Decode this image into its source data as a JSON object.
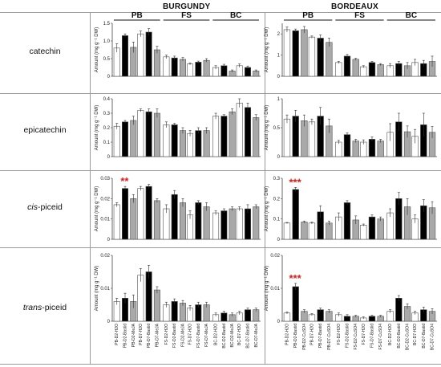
{
  "regions": [
    "BURGUNDY",
    "BORDEAUX"
  ],
  "rows": [
    {
      "label": "catechin",
      "italic_part": "",
      "suffix": ""
    },
    {
      "label": "epicatechin",
      "italic_part": "",
      "suffix": ""
    },
    {
      "label": "",
      "italic_part": "cis",
      "suffix": "-piceid"
    },
    {
      "label": "",
      "italic_part": "trans",
      "suffix": "-piceid"
    }
  ],
  "group_labels": [
    "PB",
    "FS",
    "BC"
  ],
  "y_axis_label": "Amount (mg g⁻¹ DW)",
  "colors": {
    "water": "#ffffff",
    "bastid": "#000000",
    "treat": "#a9a9a9",
    "edge": "#555555"
  },
  "chart_data": [
    {
      "type": "bar",
      "region": "BURGUNDY",
      "compound": "catechin",
      "ylim": [
        0,
        1.5
      ],
      "yticks": [
        "0",
        "0.5",
        "1.0",
        "1.5"
      ],
      "categories": [
        "PB-D2-H2O",
        "PB-D2-Bastid",
        "PB-D2-MeJA",
        "PB-D7-H2O",
        "PB-D7-Bastid",
        "PB-D7-MeJA",
        "FS-D2-H2O",
        "FS-D2-Bastid",
        "FS-D2-MeJA",
        "FS-D7-H2O",
        "FS-D7-Bastid",
        "FS-D7-MeJA",
        "BC-D2-H2O",
        "BC-D2-Bastid",
        "BC-D2-MeJA",
        "BC-D7-H2O",
        "BC-D7-Bastid",
        "BC-D7-MeJA"
      ],
      "values": [
        0.8,
        1.15,
        0.82,
        1.2,
        1.25,
        0.75,
        0.55,
        0.52,
        0.48,
        0.35,
        0.4,
        0.45,
        0.25,
        0.3,
        0.15,
        0.3,
        0.25,
        0.15
      ],
      "errors": [
        0.12,
        0.05,
        0.15,
        0.08,
        0.1,
        0.1,
        0.05,
        0.05,
        0.05,
        0.03,
        0.03,
        0.05,
        0.05,
        0.04,
        0.03,
        0.05,
        0.04,
        0.03
      ],
      "stars": "",
      "star_index": null
    },
    {
      "type": "bar",
      "region": "BURGUNDY",
      "compound": "epicatechin",
      "ylim": [
        0,
        0.4
      ],
      "yticks": [
        "0",
        "0.1",
        "0.2",
        "0.3",
        "0.4"
      ],
      "categories": [
        "PB-D2-H2O",
        "PB-D2-Bastid",
        "PB-D2-MeJA",
        "PB-D7-H2O",
        "PB-D7-Bastid",
        "PB-D7-MeJA",
        "FS-D2-H2O",
        "FS-D2-Bastid",
        "FS-D2-MeJA",
        "FS-D7-H2O",
        "FS-D7-Bastid",
        "FS-D7-MeJA",
        "BC-D2-H2O",
        "BC-D2-Bastid",
        "BC-D2-MeJA",
        "BC-D7-H2O",
        "BC-D7-Bastid",
        "BC-D7-MeJA"
      ],
      "values": [
        0.21,
        0.24,
        0.25,
        0.32,
        0.31,
        0.3,
        0.22,
        0.22,
        0.18,
        0.16,
        0.18,
        0.18,
        0.28,
        0.28,
        0.31,
        0.37,
        0.34,
        0.27
      ],
      "errors": [
        0.02,
        0.01,
        0.03,
        0.01,
        0.02,
        0.03,
        0.02,
        0.01,
        0.02,
        0.02,
        0.02,
        0.02,
        0.02,
        0.01,
        0.02,
        0.03,
        0.03,
        0.02
      ],
      "stars": "",
      "star_index": null
    },
    {
      "type": "bar",
      "region": "BURGUNDY",
      "compound": "cis-piceid",
      "ylim": [
        0,
        0.03
      ],
      "yticks": [
        "0",
        "0.01",
        "0.02",
        "0.03"
      ],
      "categories": [
        "PB-D2-H2O",
        "PB-D2-Bastid",
        "PB-D2-MeJA",
        "PB-D7-H2O",
        "PB-D7-Bastid",
        "PB-D7-MeJA",
        "FS-D2-H2O",
        "FS-D2-Bastid",
        "FS-D2-MeJA",
        "FS-D7-H2O",
        "FS-D7-Bastid",
        "FS-D7-MeJA",
        "BC-D2-H2O",
        "BC-D2-Bastid",
        "BC-D2-MeJA",
        "BC-D7-H2O",
        "BC-D7-Bastid",
        "BC-D7-MeJA"
      ],
      "values": [
        0.017,
        0.025,
        0.02,
        0.025,
        0.026,
        0.019,
        0.015,
        0.022,
        0.018,
        0.012,
        0.018,
        0.016,
        0.013,
        0.014,
        0.015,
        0.015,
        0.015,
        0.016
      ],
      "errors": [
        0.001,
        0.001,
        0.002,
        0.001,
        0.001,
        0.001,
        0.002,
        0.002,
        0.002,
        0.002,
        0.001,
        0.002,
        0.001,
        0.001,
        0.001,
        0.001,
        0.002,
        0.001
      ],
      "stars": "**",
      "star_index": 1
    },
    {
      "type": "bar",
      "region": "BURGUNDY",
      "compound": "trans-piceid",
      "ylim": [
        0,
        0.02
      ],
      "yticks": [
        "0",
        "0.01",
        "0.02"
      ],
      "categories": [
        "PB-D2-H2O",
        "PB-D2-Bastid",
        "PB-D2-MeJA",
        "PB-D7-H2O",
        "PB-D7-Bastid",
        "PB-D7-MeJA",
        "FS-D2-H2O",
        "FS-D2-Bastid",
        "FS-D2-MeJA",
        "FS-D7-H2O",
        "FS-D7-Bastid",
        "FS-D7-MeJA",
        "BC-D2-H2O",
        "BC-D2-Bastid",
        "BC-D2-MeJA",
        "BC-D7-H2O",
        "BC-D7-Bastid",
        "BC-D7-MeJA"
      ],
      "values": [
        0.006,
        0.007,
        0.006,
        0.014,
        0.015,
        0.0095,
        0.005,
        0.006,
        0.0055,
        0.004,
        0.005,
        0.005,
        0.002,
        0.0025,
        0.002,
        0.0025,
        0.0035,
        0.0035
      ],
      "errors": [
        0.001,
        0.0015,
        0.002,
        0.002,
        0.002,
        0.001,
        0.0008,
        0.0008,
        0.0008,
        0.0008,
        0.0008,
        0.0008,
        0.0005,
        0.0005,
        0.0005,
        0.0005,
        0.0005,
        0.0005
      ],
      "stars": "",
      "star_index": null
    },
    {
      "type": "bar",
      "region": "BORDEAUX",
      "compound": "catechin",
      "ylim": [
        0,
        2.5
      ],
      "yticks": [
        "0",
        "1",
        "2"
      ],
      "categories": [
        "PB-D2-H2O",
        "PB-D2-Bastid",
        "PB-D2-CuSO4",
        "PB-D7-H2O",
        "PB-D7-Bastid",
        "PB-D7-CuSO4",
        "FS-D2-H2O",
        "FS-D2-Bastid",
        "FS-D2-CuSO4",
        "FS-D7-H2O",
        "FS-D7-Bastid",
        "FS-D7-CuSO4",
        "BC-D2-H2O",
        "BC-D2-Bastid",
        "BC-D2-CuSO4",
        "BC-D7-H2O",
        "BC-D7-Bastid",
        "BC-D7-CuSO4"
      ],
      "values": [
        2.2,
        2.15,
        2.2,
        1.85,
        1.8,
        1.6,
        0.65,
        0.95,
        0.8,
        0.45,
        0.65,
        0.55,
        0.5,
        0.6,
        0.5,
        0.65,
        0.6,
        0.7
      ],
      "errors": [
        0.12,
        0.08,
        0.15,
        0.05,
        0.15,
        0.2,
        0.05,
        0.08,
        0.05,
        0.05,
        0.05,
        0.05,
        0.1,
        0.1,
        0.15,
        0.15,
        0.15,
        0.25
      ],
      "stars": "",
      "star_index": null
    },
    {
      "type": "bar",
      "region": "BORDEAUX",
      "compound": "epicatechin",
      "ylim": [
        0,
        1.0
      ],
      "yticks": [
        "0",
        "0.5",
        "1"
      ],
      "categories": [
        "PB-D2-H2O",
        "PB-D2-Bastid",
        "PB-D2-CuSO4",
        "PB-D7-H2O",
        "PB-D7-Bastid",
        "PB-D7-CuSO4",
        "FS-D2-H2O",
        "FS-D2-Bastid",
        "FS-D2-CuSO4",
        "FS-D7-H2O",
        "FS-D7-Bastid",
        "FS-D7-CuSO4",
        "BC-D2-H2O",
        "BC-D2-Bastid",
        "BC-D2-CuSO4",
        "BC-D7-H2O",
        "BC-D7-Bastid",
        "BC-D7-CuSO4"
      ],
      "values": [
        0.65,
        0.7,
        0.62,
        0.6,
        0.7,
        0.53,
        0.25,
        0.38,
        0.27,
        0.25,
        0.3,
        0.27,
        0.42,
        0.6,
        0.43,
        0.35,
        0.55,
        0.42
      ],
      "errors": [
        0.07,
        0.1,
        0.1,
        0.05,
        0.15,
        0.12,
        0.03,
        0.03,
        0.03,
        0.04,
        0.04,
        0.03,
        0.15,
        0.15,
        0.1,
        0.12,
        0.2,
        0.1
      ],
      "stars": "",
      "star_index": null
    },
    {
      "type": "bar",
      "region": "BORDEAUX",
      "compound": "cis-piceid",
      "ylim": [
        0,
        0.3
      ],
      "yticks": [
        "0",
        "0.1",
        "0.2",
        "0.3"
      ],
      "categories": [
        "PB-D2-H2O",
        "PB-D2-Bastid",
        "PB-D2-CuSO4",
        "PB-D7-H2O",
        "PB-D7-Bastid",
        "PB-D7-CuSO4",
        "FS-D2-H2O",
        "FS-D2-Bastid",
        "FS-D2-CuSO4",
        "FS-D7-H2O",
        "FS-D7-Bastid",
        "FS-D7-CuSO4",
        "BC-D2-H2O",
        "BC-D2-Bastid",
        "BC-D2-CuSO4",
        "BC-D7-H2O",
        "BC-D7-Bastid",
        "BC-D7-CuSO4"
      ],
      "values": [
        0.08,
        0.245,
        0.085,
        0.08,
        0.135,
        0.08,
        0.11,
        0.18,
        0.095,
        0.07,
        0.11,
        0.1,
        0.13,
        0.2,
        0.16,
        0.1,
        0.165,
        0.155
      ],
      "errors": [
        0.003,
        0.01,
        0.005,
        0.005,
        0.03,
        0.01,
        0.02,
        0.01,
        0.02,
        0.005,
        0.01,
        0.01,
        0.02,
        0.03,
        0.04,
        0.02,
        0.03,
        0.03
      ],
      "stars": "***",
      "star_index": 1
    },
    {
      "type": "bar",
      "region": "BORDEAUX",
      "compound": "trans-piceid",
      "ylim": [
        0,
        0.02
      ],
      "yticks": [
        "0",
        "0.01",
        "0.02"
      ],
      "categories": [
        "PB-D2-H2O",
        "PB-D2-Bastid",
        "PB-D2-CuSO4",
        "PB-D7-H2O",
        "PB-D7-Bastid",
        "PB-D7-CuSO4",
        "FS-D2-H2O",
        "FS-D2-Bastid",
        "FS-D2-CuSO4",
        "FS-D7-H2O",
        "FS-D7-Bastid",
        "FS-D7-CuSO4",
        "BC-D2-H2O",
        "BC-D2-Bastid",
        "BC-D2-CuSO4",
        "BC-D7-H2O",
        "BC-D7-Bastid",
        "BC-D7-CuSO4"
      ],
      "values": [
        0.0025,
        0.0105,
        0.003,
        0.002,
        0.0035,
        0.003,
        0.002,
        0.0015,
        0.0015,
        0.001,
        0.0015,
        0.0015,
        0.003,
        0.007,
        0.0045,
        0.0025,
        0.0035,
        0.003
      ],
      "errors": [
        0.0003,
        0.001,
        0.0005,
        0.0003,
        0.0005,
        0.0005,
        0.0005,
        0.0005,
        0.0003,
        0.0003,
        0.0003,
        0.0003,
        0.0005,
        0.0008,
        0.0008,
        0.0005,
        0.0008,
        0.0008
      ],
      "stars": "***",
      "star_index": 1
    }
  ]
}
